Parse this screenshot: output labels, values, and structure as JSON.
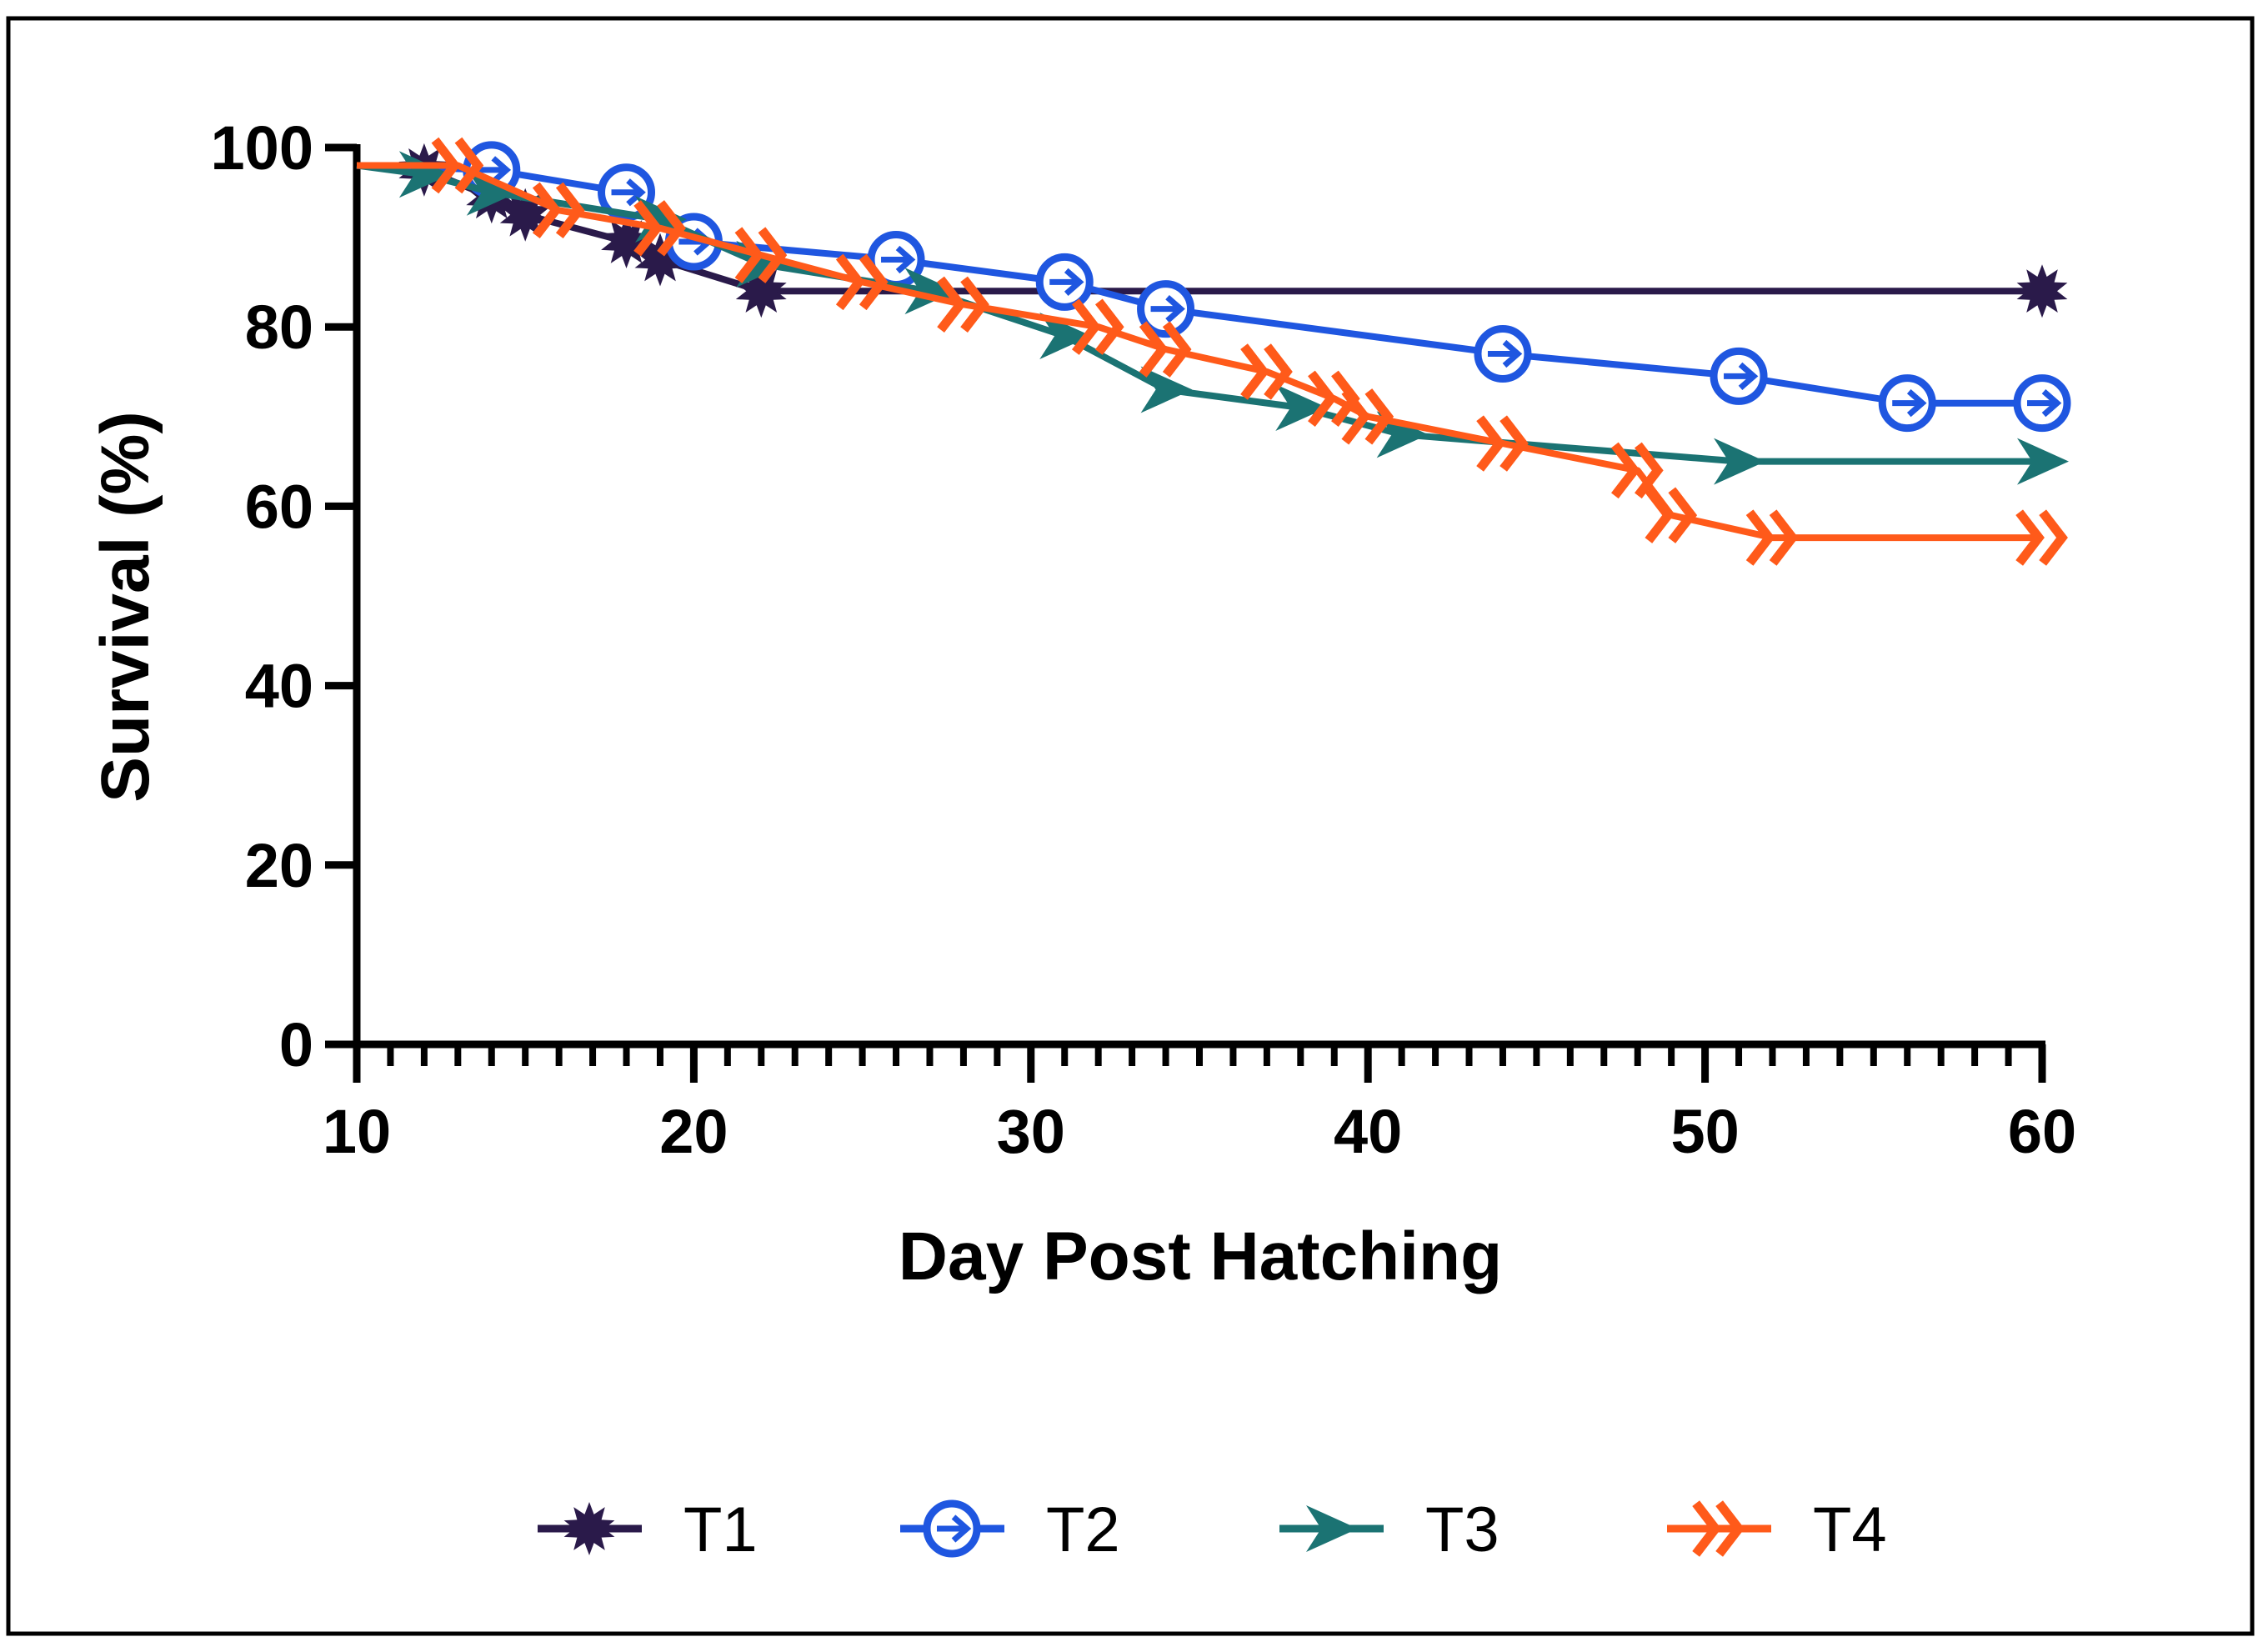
{
  "chart_data": {
    "type": "line",
    "title": "",
    "xlabel": "Day Post Hatching",
    "ylabel": "Survival (%)",
    "xlim": [
      10,
      60
    ],
    "ylim": [
      0,
      100
    ],
    "x_ticks": [
      "10",
      "20",
      "30",
      "40",
      "50",
      "60"
    ],
    "y_ticks": [
      "0",
      "20",
      "40",
      "60",
      "80",
      "100"
    ],
    "grid": false,
    "legend_position": "bottom",
    "series": [
      {
        "name": "T1",
        "color": "#2a1a4a",
        "marker": "star",
        "x": [
          10,
          12,
          14,
          15,
          18,
          19,
          22,
          60
        ],
        "y": [
          98,
          97.5,
          94.5,
          92.5,
          89.5,
          87.5,
          84,
          84
        ]
      },
      {
        "name": "T2",
        "color": "#1f56e0",
        "marker": "circle-arrow",
        "x": [
          10,
          14,
          18,
          20,
          26,
          31,
          34,
          44,
          51,
          56,
          60
        ],
        "y": [
          98,
          97.5,
          95,
          89.5,
          87.5,
          85,
          82,
          77,
          74.5,
          71.5,
          71.5
        ]
      },
      {
        "name": "T3",
        "color": "#1b7373",
        "marker": "arrow-right",
        "x": [
          10,
          12,
          14,
          19,
          22,
          27,
          31,
          34,
          38,
          41,
          51,
          60
        ],
        "y": [
          98,
          97,
          95,
          92,
          87,
          84,
          79,
          73,
          71,
          68,
          65,
          65
        ]
      },
      {
        "name": "T4",
        "color": "#ff5a1a",
        "marker": "double-chevron",
        "x": [
          10,
          13,
          16,
          19,
          22,
          25,
          28,
          32,
          34,
          37,
          39,
          40,
          44,
          48,
          49,
          52,
          60
        ],
        "y": [
          98,
          98,
          93,
          91,
          88,
          85,
          82.5,
          80,
          77.5,
          75,
          72,
          70,
          67,
          64,
          59,
          56.5,
          56.5
        ]
      }
    ]
  }
}
